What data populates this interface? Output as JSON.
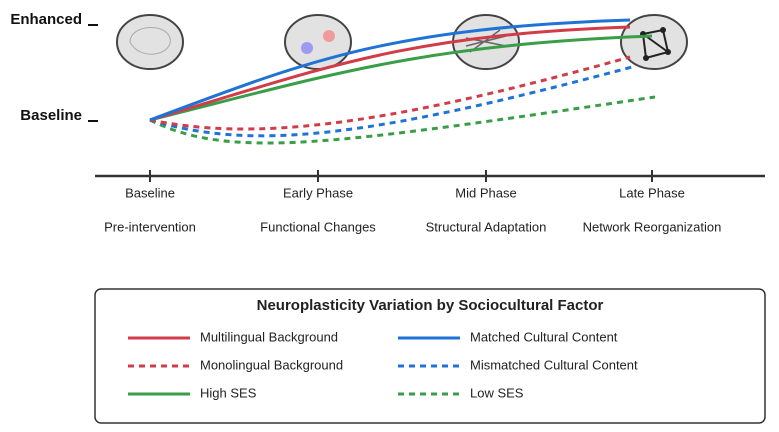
{
  "y_labels": [
    "Enhanced",
    "Baseline"
  ],
  "phases": [
    {
      "label": "Baseline",
      "sublabel": "Pre-intervention"
    },
    {
      "label": "Early Phase",
      "sublabel": "Functional Changes"
    },
    {
      "label": "Mid Phase",
      "sublabel": "Structural Adaptation"
    },
    {
      "label": "Late Phase",
      "sublabel": "Network Reorganization"
    }
  ],
  "legend": {
    "title": "Neuroplasticity Variation by Sociocultural Factor",
    "items": [
      "Multilingual Background",
      "Matched Cultural Content",
      "Monolingual Background",
      "Mismatched Cultural Content",
      "High SES",
      "Low SES"
    ]
  }
}
